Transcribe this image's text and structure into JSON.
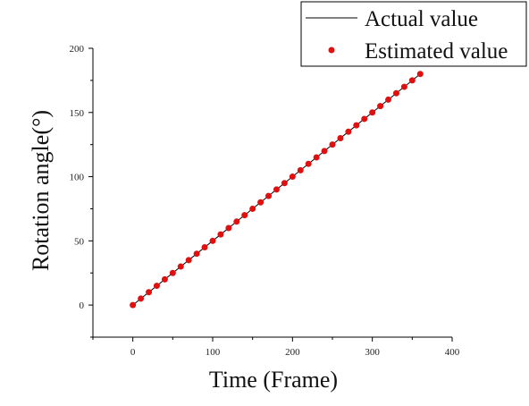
{
  "chart_data": {
    "type": "scatter",
    "title": "",
    "xlabel": "Time (Frame)",
    "ylabel": "Rotation angle(°)",
    "xlim": [
      -50,
      400
    ],
    "ylim": [
      -25,
      200
    ],
    "xticks": [
      0,
      100,
      200,
      300,
      400
    ],
    "yticks": [
      0,
      50,
      100,
      150,
      200
    ],
    "grid": false,
    "legend": "top-right",
    "series": [
      {
        "name": "Actual value",
        "kind": "line",
        "color": "#000000",
        "x": [
          0,
          360
        ],
        "y": [
          0,
          180
        ]
      },
      {
        "name": "Estimated value",
        "kind": "scatter",
        "color": "#e01010",
        "x": [
          0,
          10,
          20,
          30,
          40,
          50,
          60,
          70,
          80,
          90,
          100,
          110,
          120,
          130,
          140,
          150,
          160,
          170,
          180,
          190,
          200,
          210,
          220,
          230,
          240,
          250,
          260,
          270,
          280,
          290,
          300,
          310,
          320,
          330,
          340,
          350,
          360
        ],
        "y": [
          0,
          5,
          10,
          15,
          20,
          25,
          30,
          35,
          40,
          45,
          50,
          55,
          60,
          65,
          70,
          75,
          80,
          85,
          90,
          95,
          100,
          105,
          110,
          115,
          120,
          125,
          130,
          135,
          140,
          145,
          150,
          155,
          160,
          165,
          170,
          175,
          180
        ]
      }
    ]
  }
}
